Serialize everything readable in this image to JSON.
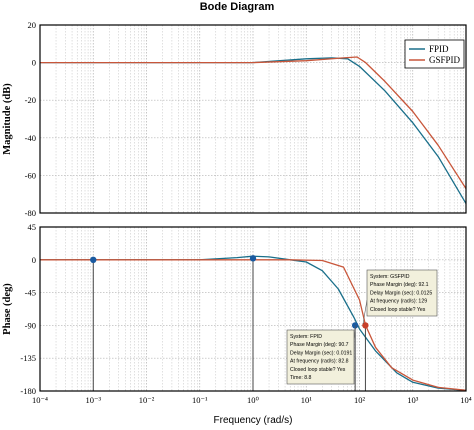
{
  "chart_data": {
    "type": "line",
    "title": "Bode Diagram",
    "xlabel": "Frequency  (rad/s)",
    "xscale": "log",
    "xlim_exp": [
      -4,
      4
    ],
    "x_tick_labels": [
      "10⁻⁴",
      "10⁻³",
      "10⁻²",
      "10⁻¹",
      "10⁰",
      "10¹",
      "10²",
      "10³",
      "10⁴"
    ],
    "grid": true,
    "legend_position": "top-right",
    "colors": {
      "FPID": "#1a6f8a",
      "GSFPID": "#c8563a",
      "grid": "#b0b0b0",
      "datatip_bg": "#f2f0dc"
    },
    "series_names": [
      "FPID",
      "GSFPID"
    ],
    "subplots": [
      {
        "name": "magnitude",
        "ylabel": "Magnitude (dB)",
        "ylim": [
          -80,
          20
        ],
        "y_ticks": [
          20,
          0,
          -20,
          -40,
          -60,
          -80
        ],
        "series": [
          {
            "name": "FPID",
            "x": [
              0.0001,
              1,
              10,
              30,
              60,
              100,
              300,
              1000,
              3000,
              10000
            ],
            "y": [
              0,
              0,
              2,
              2.5,
              2,
              -2,
              -15,
              -32,
              -50,
              -75
            ]
          },
          {
            "name": "GSFPID",
            "x": [
              0.0001,
              1,
              10,
              50,
              90,
              130,
              300,
              1000,
              3000,
              10000
            ],
            "y": [
              0,
              0,
              1,
              2.5,
              3,
              0,
              -10,
              -26,
              -44,
              -67
            ]
          }
        ]
      },
      {
        "name": "phase",
        "ylabel": "Phase (deg)",
        "ylim": [
          -180,
          45
        ],
        "y_ticks": [
          45,
          0,
          -45,
          -90,
          -135,
          -180
        ],
        "series": [
          {
            "name": "FPID",
            "x": [
              0.0001,
              0.1,
              0.5,
              1,
              2,
              5,
              10,
              20,
              40,
              80,
              100,
              200,
              500,
              1000,
              3000,
              10000
            ],
            "y": [
              0,
              0,
              3,
              5,
              4,
              0,
              -3,
              -15,
              -40,
              -80,
              -95,
              -125,
              -155,
              -168,
              -176,
              -179
            ]
          },
          {
            "name": "GSFPID",
            "x": [
              0.0001,
              5,
              20,
              50,
              100,
              130,
              200,
              400,
              1000,
              3000,
              10000
            ],
            "y": [
              0,
              0,
              -1,
              -10,
              -55,
              -90,
              -120,
              -148,
              -165,
              -175,
              -179
            ]
          }
        ]
      }
    ],
    "markers": [
      {
        "subplot": "phase",
        "x": 0.001,
        "y": 0,
        "color": "#1a5aa0"
      },
      {
        "subplot": "phase",
        "x": 1,
        "y": 2,
        "color": "#1a5aa0"
      },
      {
        "subplot": "phase",
        "x": 82.8,
        "y": -90,
        "color": "#1a5aa0"
      },
      {
        "subplot": "phase",
        "x": 129,
        "y": -90,
        "color": "#c8402a"
      }
    ],
    "datatips": [
      {
        "series": "GSFPID",
        "lines": [
          "System: GSFPID",
          "Phase Margin (deg): 92.1",
          "Delay Margin (sec): 0.0125",
          "At frequency (rad/s): 129",
          "Closed loop stable? Yes"
        ]
      },
      {
        "series": "FPID",
        "lines": [
          "System: FPID",
          "Phase Margin (deg): 90.7",
          "Delay Margin (sec): 0.0191",
          "At frequency (rad/s): 82.8",
          "Closed loop stable? Yes",
          "Time: 8.8"
        ]
      }
    ]
  }
}
